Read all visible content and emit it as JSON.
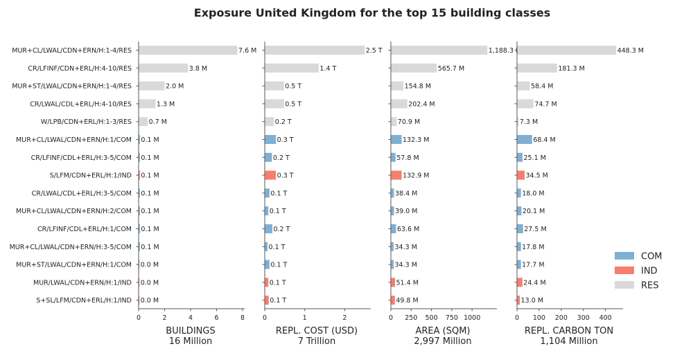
{
  "chart_data": {
    "type": "bar",
    "orientation": "horizontal",
    "title": "Exposure United Kingdom for the top 15 building classes",
    "categories": [
      "MUR+CL/LWAL/CDN+ERN/H:1-4/RES",
      "CR/LFINF/CDN+ERL/H:4-10/RES",
      "MUR+ST/LWAL/CDN+ERN/H:1-4/RES",
      "CR/LWAL/CDL+ERL/H:4-10/RES",
      "W/LPB/CDN+ERL/H:1-3/RES",
      "MUR+CL/LWAL/CDN+ERN/H:1/COM",
      "CR/LFINF/CDL+ERL/H:3-5/COM",
      "S/LFM/CDN+ERL/H:1/IND",
      "CR/LWAL/CDL+ERL/H:3-5/COM",
      "MUR+CL/LWAL/CDN+ERN/H:2/COM",
      "CR/LFINF/CDL+ERL/H:1/COM",
      "MUR+CL/LWAL/CDN+ERN/H:3-5/COM",
      "MUR+ST/LWAL/CDN+ERN/H:1/COM",
      "MUR/LWAL/CDN+ERN/H:1/IND",
      "S+SL/LFM/CDN+ERL/H:1/IND"
    ],
    "occupancy": [
      "RES",
      "RES",
      "RES",
      "RES",
      "RES",
      "COM",
      "COM",
      "IND",
      "COM",
      "COM",
      "COM",
      "COM",
      "COM",
      "IND",
      "IND"
    ],
    "colors": {
      "COM": "#7fb0d3",
      "IND": "#f67e6e",
      "RES": "#d9d9d9"
    },
    "legend": {
      "position": "right",
      "entries": [
        "COM",
        "IND",
        "RES"
      ]
    },
    "panels": [
      {
        "xlabel": "BUILDINGS",
        "subtitle": "16 Million",
        "xlim": [
          0,
          8
        ],
        "ticks": [
          "0",
          "2",
          "4",
          "6",
          "8"
        ],
        "tick_values": [
          0,
          2,
          4,
          6,
          8
        ],
        "values": [
          7.6,
          3.8,
          2.0,
          1.3,
          0.7,
          0.1,
          0.1,
          0.1,
          0.1,
          0.1,
          0.1,
          0.1,
          0.0,
          0.0,
          0.0
        ],
        "labels": [
          "7.6 M",
          "3.8 M",
          "2.0 M",
          "1.3 M",
          "0.7 M",
          "0.1 M",
          "0.1 M",
          "0.1 M",
          "0.1 M",
          "0.1 M",
          "0.1 M",
          "0.1 M",
          "0.0 M",
          "0.0 M",
          "0.0 M"
        ]
      },
      {
        "xlabel": "REPL. COST (USD)",
        "subtitle": "7 Trillion",
        "xlim": [
          0,
          2.6
        ],
        "ticks": [
          "0",
          "1",
          "2"
        ],
        "tick_values": [
          0,
          1,
          2
        ],
        "values": [
          2.5,
          1.35,
          0.48,
          0.48,
          0.23,
          0.28,
          0.18,
          0.28,
          0.12,
          0.09,
          0.19,
          0.07,
          0.12,
          0.09,
          0.1
        ],
        "labels": [
          "2.5 T",
          "1.4 T",
          "0.5 T",
          "0.5 T",
          "0.2 T",
          "0.3 T",
          "0.2 T",
          "0.3 T",
          "0.1 T",
          "0.1 T",
          "0.2 T",
          "0.1 T",
          "0.1 T",
          "0.1 T",
          "0.1 T"
        ]
      },
      {
        "xlabel": "AREA (SQM)",
        "subtitle": "2,997 Million",
        "xlim": [
          0,
          1280
        ],
        "ticks": [
          "0",
          "250",
          "500",
          "750",
          "1000"
        ],
        "tick_values": [
          0,
          250,
          500,
          750,
          1000
        ],
        "values": [
          1188.3,
          565.7,
          154.8,
          202.4,
          70.9,
          132.3,
          57.8,
          132.9,
          38.4,
          39.0,
          63.6,
          34.3,
          34.3,
          51.4,
          49.8
        ],
        "labels": [
          "1,188.3 M",
          "565.7 M",
          "154.8 M",
          "202.4 M",
          "70.9 M",
          "132.3 M",
          "57.8 M",
          "132.9 M",
          "38.4 M",
          "39.0 M",
          "63.6 M",
          "34.3 M",
          "34.3 M",
          "51.4 M",
          "49.8 M"
        ]
      },
      {
        "xlabel": "REPL. CARBON TON",
        "subtitle": "1,104 Million",
        "xlim": [
          0,
          470
        ],
        "ticks": [
          "0",
          "100",
          "200",
          "300",
          "400"
        ],
        "tick_values": [
          0,
          100,
          200,
          300,
          400
        ],
        "values": [
          448.3,
          181.3,
          58.4,
          74.7,
          7.3,
          68.4,
          25.1,
          34.5,
          18.0,
          20.1,
          27.5,
          17.8,
          17.7,
          24.4,
          13.0
        ],
        "labels": [
          "448.3 M",
          "181.3 M",
          "58.4 M",
          "74.7 M",
          "7.3 M",
          "68.4 M",
          "25.1 M",
          "34.5 M",
          "18.0 M",
          "20.1 M",
          "27.5 M",
          "17.8 M",
          "17.7 M",
          "24.4 M",
          "13.0 M"
        ]
      }
    ]
  }
}
